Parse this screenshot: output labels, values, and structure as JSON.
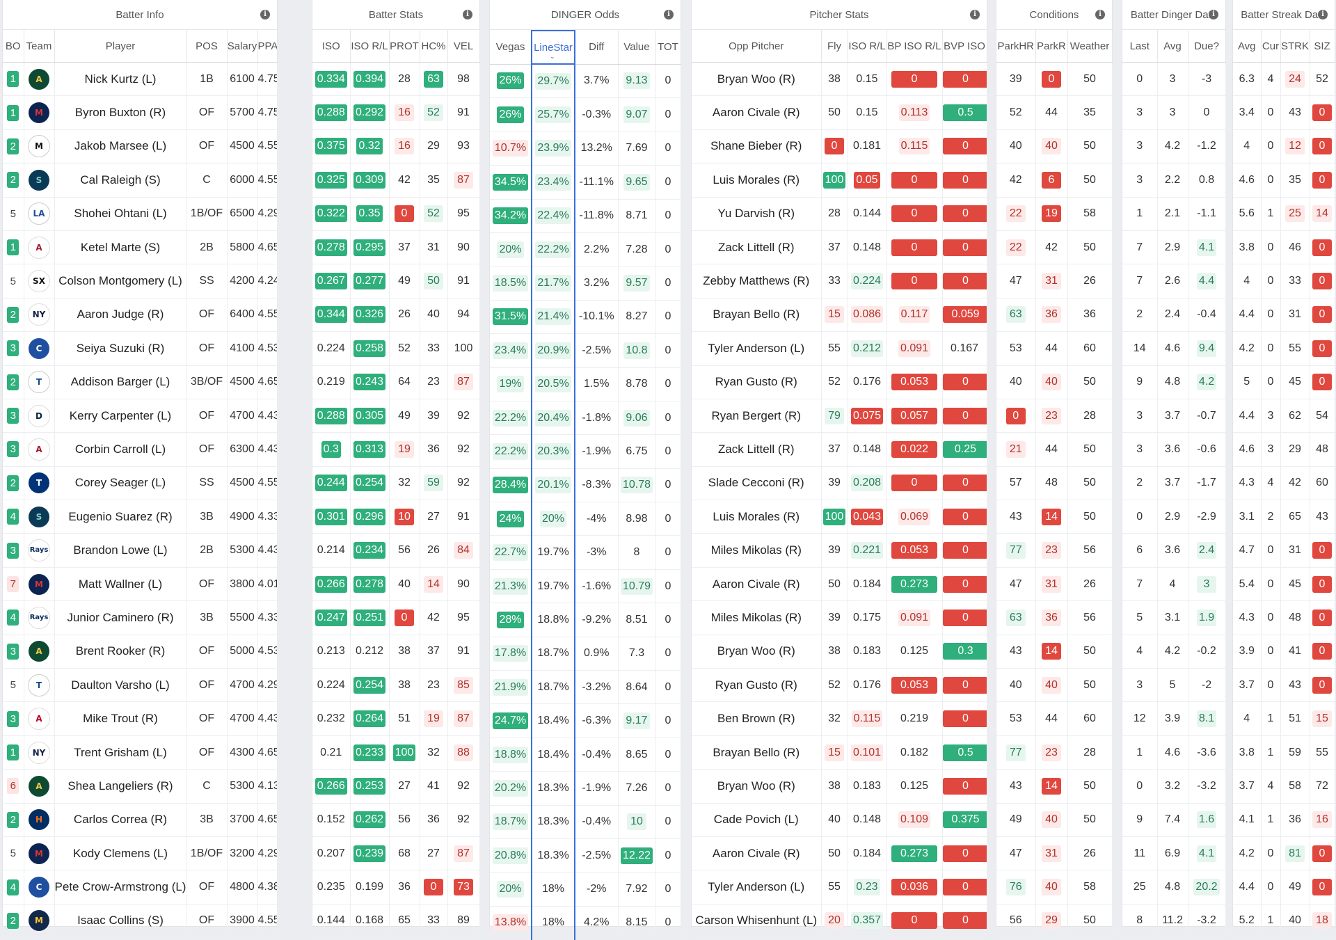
{
  "groups": {
    "batter_info": "Batter Info",
    "batter_stats": "Batter Stats",
    "dinger_odds": "DINGER Odds",
    "pitcher_stats": "Pitcher Stats",
    "conditions": "Conditions",
    "batter_dinger": "Batter Dinger Data",
    "batter_streak": "Batter Streak Data"
  },
  "headers": {
    "bo": "BO",
    "team": "Team",
    "player": "Player",
    "pos": "POS",
    "salary": "Salary",
    "ppa": "PPA",
    "iso": "ISO",
    "iso_rl": "ISO R/L",
    "prot": "PROT",
    "hc": "HC%",
    "vel": "VEL",
    "vegas": "Vegas",
    "linestar": "LineStar",
    "diff": "Diff",
    "value": "Value",
    "tot": "TOT",
    "opp": "Opp Pitcher",
    "fly": "Fly",
    "p_iso_rl": "ISO R/L",
    "bp_iso": "BP ISO R/L",
    "bvp": "BVP ISO",
    "parkhr": "ParkHR",
    "parkr": "ParkR",
    "weather": "Weather",
    "last": "Last",
    "avg": "Avg",
    "due": "Due?",
    "s_avg": "Avg",
    "cur": "Cur",
    "strk": "STRK",
    "siz": "SIZ"
  },
  "colors": {
    "green": "#2eaf7b",
    "red": "#e0473e",
    "selected": "#3b6fd6"
  },
  "rows": [
    {
      "bo": "1",
      "team": "ATH",
      "player": "Nick Kurtz (L)",
      "pos": "1B",
      "salary": "6100",
      "ppa": "4.75",
      "iso": "0.334",
      "iso_rl": "0.394",
      "prot": "28",
      "hc": "63",
      "vel": "98",
      "vegas": "26%",
      "linestar": "29.7%",
      "diff": "3.7%",
      "value": "9.13",
      "tot": "0",
      "opp": "Bryan Woo (R)",
      "fly": "38",
      "p_iso": "0.15",
      "bp": "0",
      "bvp": "0",
      "parkhr": "39",
      "parkr": "0",
      "weather": "50",
      "last": "0",
      "davg": "3",
      "due": "-3",
      "savg": "6.3",
      "cur": "4",
      "strk": "24",
      "siz": "52"
    },
    {
      "bo": "1",
      "team": "MIN",
      "player": "Byron Buxton (R)",
      "pos": "OF",
      "salary": "5700",
      "ppa": "4.75",
      "iso": "0.288",
      "iso_rl": "0.292",
      "prot": "16",
      "hc": "52",
      "vel": "91",
      "vegas": "26%",
      "linestar": "25.7%",
      "diff": "-0.3%",
      "value": "9.07",
      "tot": "0",
      "opp": "Aaron Civale (R)",
      "fly": "50",
      "p_iso": "0.15",
      "bp": "0.113",
      "bvp": "0.5",
      "parkhr": "52",
      "parkr": "44",
      "weather": "35",
      "last": "3",
      "davg": "3",
      "due": "0",
      "savg": "3.4",
      "cur": "0",
      "strk": "43",
      "siz": "0"
    },
    {
      "bo": "2",
      "team": "MIA",
      "player": "Jakob Marsee (L)",
      "pos": "OF",
      "salary": "4500",
      "ppa": "4.55",
      "iso": "0.375",
      "iso_rl": "0.32",
      "prot": "16",
      "hc": "29",
      "vel": "93",
      "vegas": "10.7%",
      "linestar": "23.9%",
      "diff": "13.2%",
      "value": "7.69",
      "tot": "0",
      "opp": "Shane Bieber (R)",
      "fly": "0",
      "p_iso": "0.181",
      "bp": "0.115",
      "bvp": "0",
      "parkhr": "40",
      "parkr": "40",
      "weather": "50",
      "last": "3",
      "davg": "4.2",
      "due": "-1.2",
      "savg": "4",
      "cur": "0",
      "strk": "12",
      "siz": "0"
    },
    {
      "bo": "2",
      "team": "SEA",
      "player": "Cal Raleigh (S)",
      "pos": "C",
      "salary": "6000",
      "ppa": "4.55",
      "iso": "0.325",
      "iso_rl": "0.309",
      "prot": "42",
      "hc": "35",
      "vel": "87",
      "vegas": "34.5%",
      "linestar": "23.4%",
      "diff": "-11.1%",
      "value": "9.65",
      "tot": "0",
      "opp": "Luis Morales (R)",
      "fly": "100",
      "p_iso": "0.05",
      "bp": "0",
      "bvp": "0",
      "parkhr": "42",
      "parkr": "6",
      "weather": "50",
      "last": "3",
      "davg": "2.2",
      "due": "0.8",
      "savg": "4.6",
      "cur": "0",
      "strk": "35",
      "siz": "0"
    },
    {
      "bo": "5",
      "team": "LAD",
      "player": "Shohei Ohtani (L)",
      "pos": "1B/OF",
      "salary": "6500",
      "ppa": "4.29",
      "iso": "0.322",
      "iso_rl": "0.35",
      "prot": "0",
      "hc": "52",
      "vel": "95",
      "vegas": "34.2%",
      "linestar": "22.4%",
      "diff": "-11.8%",
      "value": "8.71",
      "tot": "0",
      "opp": "Yu Darvish (R)",
      "fly": "28",
      "p_iso": "0.144",
      "bp": "0",
      "bvp": "0",
      "parkhr": "22",
      "parkr": "19",
      "weather": "58",
      "last": "1",
      "davg": "2.1",
      "due": "-1.1",
      "savg": "5.6",
      "cur": "1",
      "strk": "25",
      "siz": "14"
    },
    {
      "bo": "1",
      "team": "ARI",
      "player": "Ketel Marte (S)",
      "pos": "2B",
      "salary": "5800",
      "ppa": "4.65",
      "iso": "0.278",
      "iso_rl": "0.295",
      "prot": "37",
      "hc": "31",
      "vel": "90",
      "vegas": "20%",
      "linestar": "22.2%",
      "diff": "2.2%",
      "value": "7.28",
      "tot": "0",
      "opp": "Zack Littell (R)",
      "fly": "37",
      "p_iso": "0.148",
      "bp": "0",
      "bvp": "0",
      "parkhr": "22",
      "parkr": "42",
      "weather": "50",
      "last": "7",
      "davg": "2.9",
      "due": "4.1",
      "savg": "3.8",
      "cur": "0",
      "strk": "46",
      "siz": "0"
    },
    {
      "bo": "5",
      "team": "CWS",
      "player": "Colson Montgomery (L)",
      "pos": "SS",
      "salary": "4200",
      "ppa": "4.24",
      "iso": "0.267",
      "iso_rl": "0.277",
      "prot": "49",
      "hc": "50",
      "vel": "91",
      "vegas": "18.5%",
      "linestar": "21.7%",
      "diff": "3.2%",
      "value": "9.57",
      "tot": "0",
      "opp": "Zebby Matthews (R)",
      "fly": "33",
      "p_iso": "0.224",
      "bp": "0",
      "bvp": "0",
      "parkhr": "47",
      "parkr": "31",
      "weather": "26",
      "last": "7",
      "davg": "2.6",
      "due": "4.4",
      "savg": "4",
      "cur": "0",
      "strk": "33",
      "siz": "0"
    },
    {
      "bo": "2",
      "team": "NYY",
      "player": "Aaron Judge (R)",
      "pos": "OF",
      "salary": "6400",
      "ppa": "4.55",
      "iso": "0.344",
      "iso_rl": "0.326",
      "prot": "26",
      "hc": "40",
      "vel": "94",
      "vegas": "31.5%",
      "linestar": "21.4%",
      "diff": "-10.1%",
      "value": "8.27",
      "tot": "0",
      "opp": "Brayan Bello (R)",
      "fly": "15",
      "p_iso": "0.086",
      "bp": "0.117",
      "bvp": "0.059",
      "parkhr": "63",
      "parkr": "36",
      "weather": "36",
      "last": "2",
      "davg": "2.4",
      "due": "-0.4",
      "savg": "4.4",
      "cur": "0",
      "strk": "31",
      "siz": "0"
    },
    {
      "bo": "3",
      "team": "CHC",
      "player": "Seiya Suzuki (R)",
      "pos": "OF",
      "salary": "4100",
      "ppa": "4.53",
      "iso": "0.224",
      "iso_rl": "0.258",
      "prot": "52",
      "hc": "33",
      "vel": "100",
      "vegas": "23.4%",
      "linestar": "20.9%",
      "diff": "-2.5%",
      "value": "10.8",
      "tot": "0",
      "opp": "Tyler Anderson (L)",
      "fly": "55",
      "p_iso": "0.212",
      "bp": "0.091",
      "bvp": "0.167",
      "parkhr": "53",
      "parkr": "44",
      "weather": "60",
      "last": "14",
      "davg": "4.6",
      "due": "9.4",
      "savg": "4.2",
      "cur": "0",
      "strk": "55",
      "siz": "0"
    },
    {
      "bo": "2",
      "team": "TOR",
      "player": "Addison Barger (L)",
      "pos": "3B/OF",
      "salary": "4500",
      "ppa": "4.65",
      "iso": "0.219",
      "iso_rl": "0.243",
      "prot": "64",
      "hc": "23",
      "vel": "87",
      "vegas": "19%",
      "linestar": "20.5%",
      "diff": "1.5%",
      "value": "8.78",
      "tot": "0",
      "opp": "Ryan Gusto (R)",
      "fly": "52",
      "p_iso": "0.176",
      "bp": "0.053",
      "bvp": "0",
      "parkhr": "40",
      "parkr": "40",
      "weather": "50",
      "last": "9",
      "davg": "4.8",
      "due": "4.2",
      "savg": "5",
      "cur": "0",
      "strk": "45",
      "siz": "0"
    },
    {
      "bo": "3",
      "team": "DET",
      "player": "Kerry Carpenter (L)",
      "pos": "OF",
      "salary": "4700",
      "ppa": "4.43",
      "iso": "0.288",
      "iso_rl": "0.305",
      "prot": "49",
      "hc": "39",
      "vel": "92",
      "vegas": "22.2%",
      "linestar": "20.4%",
      "diff": "-1.8%",
      "value": "9.06",
      "tot": "0",
      "opp": "Ryan Bergert (R)",
      "fly": "79",
      "p_iso": "0.075",
      "bp": "0.057",
      "bvp": "0",
      "parkhr": "0",
      "parkr": "23",
      "weather": "28",
      "last": "3",
      "davg": "3.7",
      "due": "-0.7",
      "savg": "4.4",
      "cur": "3",
      "strk": "62",
      "siz": "54"
    },
    {
      "bo": "3",
      "team": "ARI",
      "player": "Corbin Carroll (L)",
      "pos": "OF",
      "salary": "6300",
      "ppa": "4.43",
      "iso": "0.3",
      "iso_rl": "0.313",
      "prot": "19",
      "hc": "36",
      "vel": "92",
      "vegas": "22.2%",
      "linestar": "20.3%",
      "diff": "-1.9%",
      "value": "6.75",
      "tot": "0",
      "opp": "Zack Littell (R)",
      "fly": "37",
      "p_iso": "0.148",
      "bp": "0.022",
      "bvp": "0.25",
      "parkhr": "21",
      "parkr": "44",
      "weather": "50",
      "last": "3",
      "davg": "3.6",
      "due": "-0.6",
      "savg": "4.6",
      "cur": "3",
      "strk": "29",
      "siz": "48"
    },
    {
      "bo": "2",
      "team": "TEX",
      "player": "Corey Seager (L)",
      "pos": "SS",
      "salary": "4500",
      "ppa": "4.55",
      "iso": "0.244",
      "iso_rl": "0.254",
      "prot": "32",
      "hc": "59",
      "vel": "92",
      "vegas": "28.4%",
      "linestar": "20.1%",
      "diff": "-8.3%",
      "value": "10.78",
      "tot": "0",
      "opp": "Slade Cecconi (R)",
      "fly": "39",
      "p_iso": "0.208",
      "bp": "0",
      "bvp": "0",
      "parkhr": "57",
      "parkr": "48",
      "weather": "50",
      "last": "2",
      "davg": "3.7",
      "due": "-1.7",
      "savg": "4.3",
      "cur": "4",
      "strk": "42",
      "siz": "60"
    },
    {
      "bo": "4",
      "team": "SEA",
      "player": "Eugenio Suarez (R)",
      "pos": "3B",
      "salary": "4900",
      "ppa": "4.33",
      "iso": "0.301",
      "iso_rl": "0.296",
      "prot": "10",
      "hc": "27",
      "vel": "91",
      "vegas": "24%",
      "linestar": "20%",
      "diff": "-4%",
      "value": "8.98",
      "tot": "0",
      "opp": "Luis Morales (R)",
      "fly": "100",
      "p_iso": "0.043",
      "bp": "0.069",
      "bvp": "0",
      "parkhr": "43",
      "parkr": "14",
      "weather": "50",
      "last": "0",
      "davg": "2.9",
      "due": "-2.9",
      "savg": "3.1",
      "cur": "2",
      "strk": "65",
      "siz": "43"
    },
    {
      "bo": "3",
      "team": "TB",
      "player": "Brandon Lowe (L)",
      "pos": "2B",
      "salary": "5300",
      "ppa": "4.43",
      "iso": "0.214",
      "iso_rl": "0.234",
      "prot": "56",
      "hc": "26",
      "vel": "84",
      "vegas": "22.7%",
      "linestar": "19.7%",
      "diff": "-3%",
      "value": "8",
      "tot": "0",
      "opp": "Miles Mikolas (R)",
      "fly": "39",
      "p_iso": "0.221",
      "bp": "0.053",
      "bvp": "0",
      "parkhr": "77",
      "parkr": "23",
      "weather": "56",
      "last": "6",
      "davg": "3.6",
      "due": "2.4",
      "savg": "4.7",
      "cur": "0",
      "strk": "31",
      "siz": "0"
    },
    {
      "bo": "7",
      "team": "MIN",
      "player": "Matt Wallner (L)",
      "pos": "OF",
      "salary": "3800",
      "ppa": "4.01",
      "iso": "0.266",
      "iso_rl": "0.278",
      "prot": "40",
      "hc": "14",
      "vel": "90",
      "vegas": "21.3%",
      "linestar": "19.7%",
      "diff": "-1.6%",
      "value": "10.79",
      "tot": "0",
      "opp": "Aaron Civale (R)",
      "fly": "50",
      "p_iso": "0.184",
      "bp": "0.273",
      "bvp": "0",
      "parkhr": "47",
      "parkr": "31",
      "weather": "26",
      "last": "7",
      "davg": "4",
      "due": "3",
      "savg": "5.4",
      "cur": "0",
      "strk": "45",
      "siz": "0"
    },
    {
      "bo": "4",
      "team": "TB",
      "player": "Junior Caminero (R)",
      "pos": "3B",
      "salary": "5500",
      "ppa": "4.33",
      "iso": "0.247",
      "iso_rl": "0.251",
      "prot": "0",
      "hc": "42",
      "vel": "95",
      "vegas": "28%",
      "linestar": "18.8%",
      "diff": "-9.2%",
      "value": "8.51",
      "tot": "0",
      "opp": "Miles Mikolas (R)",
      "fly": "39",
      "p_iso": "0.175",
      "bp": "0.091",
      "bvp": "0",
      "parkhr": "63",
      "parkr": "36",
      "weather": "56",
      "last": "5",
      "davg": "3.1",
      "due": "1.9",
      "savg": "4.3",
      "cur": "0",
      "strk": "48",
      "siz": "0"
    },
    {
      "bo": "3",
      "team": "ATH",
      "player": "Brent Rooker (R)",
      "pos": "OF",
      "salary": "5000",
      "ppa": "4.53",
      "iso": "0.213",
      "iso_rl": "0.212",
      "prot": "38",
      "hc": "37",
      "vel": "91",
      "vegas": "17.8%",
      "linestar": "18.7%",
      "diff": "0.9%",
      "value": "7.3",
      "tot": "0",
      "opp": "Bryan Woo (R)",
      "fly": "38",
      "p_iso": "0.183",
      "bp": "0.125",
      "bvp": "0.3",
      "parkhr": "43",
      "parkr": "14",
      "weather": "50",
      "last": "4",
      "davg": "4.2",
      "due": "-0.2",
      "savg": "3.9",
      "cur": "0",
      "strk": "41",
      "siz": "0"
    },
    {
      "bo": "5",
      "team": "TOR",
      "player": "Daulton Varsho (L)",
      "pos": "OF",
      "salary": "4700",
      "ppa": "4.29",
      "iso": "0.224",
      "iso_rl": "0.254",
      "prot": "38",
      "hc": "23",
      "vel": "85",
      "vegas": "21.9%",
      "linestar": "18.7%",
      "diff": "-3.2%",
      "value": "8.64",
      "tot": "0",
      "opp": "Ryan Gusto (R)",
      "fly": "52",
      "p_iso": "0.176",
      "bp": "0.053",
      "bvp": "0",
      "parkhr": "40",
      "parkr": "40",
      "weather": "50",
      "last": "3",
      "davg": "5",
      "due": "-2",
      "savg": "3.7",
      "cur": "0",
      "strk": "43",
      "siz": "0"
    },
    {
      "bo": "3",
      "team": "LAA",
      "player": "Mike Trout (R)",
      "pos": "OF",
      "salary": "4700",
      "ppa": "4.43",
      "iso": "0.232",
      "iso_rl": "0.264",
      "prot": "51",
      "hc": "19",
      "vel": "87",
      "vegas": "24.7%",
      "linestar": "18.4%",
      "diff": "-6.3%",
      "value": "9.17",
      "tot": "0",
      "opp": "Ben Brown (R)",
      "fly": "32",
      "p_iso": "0.115",
      "bp": "0.219",
      "bvp": "0",
      "parkhr": "53",
      "parkr": "44",
      "weather": "60",
      "last": "12",
      "davg": "3.9",
      "due": "8.1",
      "savg": "4",
      "cur": "1",
      "strk": "51",
      "siz": "15"
    },
    {
      "bo": "1",
      "team": "NYY",
      "player": "Trent Grisham (L)",
      "pos": "OF",
      "salary": "4300",
      "ppa": "4.65",
      "iso": "0.21",
      "iso_rl": "0.233",
      "prot": "100",
      "hc": "32",
      "vel": "88",
      "vegas": "18.8%",
      "linestar": "18.4%",
      "diff": "-0.4%",
      "value": "8.65",
      "tot": "0",
      "opp": "Brayan Bello (R)",
      "fly": "15",
      "p_iso": "0.101",
      "bp": "0.182",
      "bvp": "0.5",
      "parkhr": "77",
      "parkr": "23",
      "weather": "28",
      "last": "1",
      "davg": "4.6",
      "due": "-3.6",
      "savg": "3.8",
      "cur": "1",
      "strk": "59",
      "siz": "55"
    },
    {
      "bo": "6",
      "team": "ATH",
      "player": "Shea Langeliers (R)",
      "pos": "C",
      "salary": "5300",
      "ppa": "4.13",
      "iso": "0.266",
      "iso_rl": "0.253",
      "prot": "27",
      "hc": "41",
      "vel": "92",
      "vegas": "20.2%",
      "linestar": "18.3%",
      "diff": "-1.9%",
      "value": "7.26",
      "tot": "0",
      "opp": "Bryan Woo (R)",
      "fly": "38",
      "p_iso": "0.183",
      "bp": "0.125",
      "bvp": "0",
      "parkhr": "43",
      "parkr": "14",
      "weather": "50",
      "last": "0",
      "davg": "3.2",
      "due": "-3.2",
      "savg": "3.7",
      "cur": "4",
      "strk": "58",
      "siz": "72"
    },
    {
      "bo": "2",
      "team": "HOU",
      "player": "Carlos Correa (R)",
      "pos": "3B",
      "salary": "3700",
      "ppa": "4.65",
      "iso": "0.152",
      "iso_rl": "0.262",
      "prot": "56",
      "hc": "36",
      "vel": "92",
      "vegas": "18.7%",
      "linestar": "18.3%",
      "diff": "-0.4%",
      "value": "10",
      "tot": "0",
      "opp": "Cade Povich (L)",
      "fly": "40",
      "p_iso": "0.148",
      "bp": "0.109",
      "bvp": "0.375",
      "parkhr": "49",
      "parkr": "40",
      "weather": "50",
      "last": "9",
      "davg": "7.4",
      "due": "1.6",
      "savg": "4.1",
      "cur": "1",
      "strk": "36",
      "siz": "16"
    },
    {
      "bo": "5",
      "team": "MIN",
      "player": "Kody Clemens (L)",
      "pos": "1B/OF",
      "salary": "3200",
      "ppa": "4.29",
      "iso": "0.207",
      "iso_rl": "0.239",
      "prot": "68",
      "hc": "27",
      "vel": "87",
      "vegas": "20.8%",
      "linestar": "18.3%",
      "diff": "-2.5%",
      "value": "12.22",
      "tot": "0",
      "opp": "Aaron Civale (R)",
      "fly": "50",
      "p_iso": "0.184",
      "bp": "0.273",
      "bvp": "0",
      "parkhr": "47",
      "parkr": "31",
      "weather": "26",
      "last": "11",
      "davg": "6.9",
      "due": "4.1",
      "savg": "4.2",
      "cur": "0",
      "strk": "81",
      "siz": "0"
    },
    {
      "bo": "4",
      "team": "CHC",
      "player": "Pete Crow-Armstrong (L)",
      "pos": "OF",
      "salary": "4800",
      "ppa": "4.38",
      "iso": "0.235",
      "iso_rl": "0.199",
      "prot": "36",
      "hc": "0",
      "vel": "73",
      "vegas": "20%",
      "linestar": "18%",
      "diff": "-2%",
      "value": "7.92",
      "tot": "0",
      "opp": "Tyler Anderson (L)",
      "fly": "55",
      "p_iso": "0.23",
      "bp": "0.036",
      "bvp": "0",
      "parkhr": "76",
      "parkr": "40",
      "weather": "58",
      "last": "25",
      "davg": "4.8",
      "due": "20.2",
      "savg": "4.4",
      "cur": "0",
      "strk": "49",
      "siz": "0"
    },
    {
      "bo": "2",
      "team": "MIL",
      "player": "Isaac Collins (S)",
      "pos": "OF",
      "salary": "3900",
      "ppa": "4.55",
      "iso": "0.144",
      "iso_rl": "0.168",
      "prot": "65",
      "hc": "33",
      "vel": "89",
      "vegas": "13.8%",
      "linestar": "18%",
      "diff": "4.2%",
      "value": "8.15",
      "tot": "0",
      "opp": "Carson Whisenhunt (L)",
      "fly": "20",
      "p_iso": "0.357",
      "bp": "0",
      "bvp": "0",
      "parkhr": "56",
      "parkr": "29",
      "weather": "50",
      "last": "8",
      "davg": "11.2",
      "due": "-3.2",
      "savg": "5.2",
      "cur": "1",
      "strk": "40",
      "siz": "18"
    }
  ]
}
